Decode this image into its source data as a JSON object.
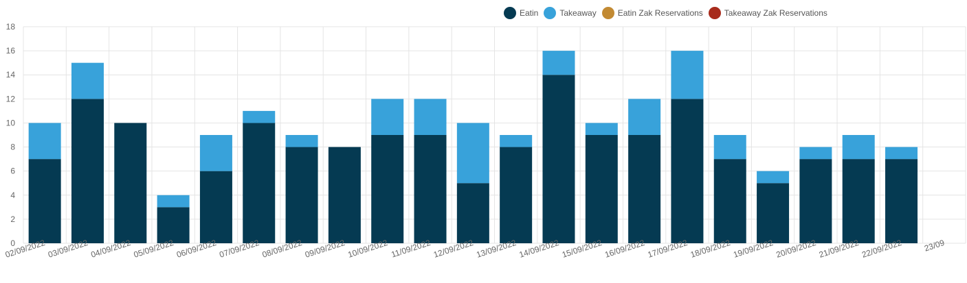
{
  "chart_data": {
    "type": "bar",
    "stacked": true,
    "categories": [
      "02/09/2022",
      "03/09/2022",
      "04/09/2022",
      "05/09/2022",
      "06/09/2022",
      "07/09/2022",
      "08/09/2022",
      "09/09/2022",
      "10/09/2022",
      "11/09/2022",
      "12/09/2022",
      "13/09/2022",
      "14/09/2022",
      "15/09/2022",
      "16/09/2022",
      "17/09/2022",
      "18/09/2022",
      "19/09/2022",
      "20/09/2022",
      "21/09/2022",
      "22/09/2022",
      "23/09"
    ],
    "series": [
      {
        "name": "Eatin",
        "color": "#053a52",
        "values": [
          7,
          12,
          10,
          3,
          6,
          10,
          8,
          8,
          9,
          9,
          5,
          8,
          14,
          9,
          9,
          12,
          7,
          5,
          7,
          7,
          7,
          null
        ]
      },
      {
        "name": "Takeaway",
        "color": "#38a2da",
        "values": [
          3,
          3,
          0,
          1,
          3,
          1,
          1,
          0,
          3,
          3,
          5,
          1,
          2,
          1,
          3,
          4,
          2,
          1,
          1,
          2,
          1,
          null
        ]
      },
      {
        "name": "Eatin Zak Reservations",
        "color": "#c28a33",
        "values": [
          0,
          0,
          0,
          0,
          0,
          0,
          0,
          0,
          0,
          0,
          0,
          0,
          0,
          0,
          0,
          0,
          0,
          0,
          0,
          0,
          0,
          null
        ]
      },
      {
        "name": "Takeaway Zak Reservations",
        "color": "#a82b1c",
        "values": [
          0,
          0,
          0,
          0,
          0,
          0,
          0,
          0,
          0,
          0,
          0,
          0,
          0,
          0,
          0,
          0,
          0,
          0,
          0,
          0,
          0,
          null
        ]
      }
    ],
    "y_ticks": [
      "0",
      "2",
      "4",
      "6",
      "8",
      "10",
      "12",
      "14",
      "16",
      "18"
    ],
    "ylim": [
      0,
      18
    ],
    "grid": true,
    "legend_position": "top-right"
  }
}
